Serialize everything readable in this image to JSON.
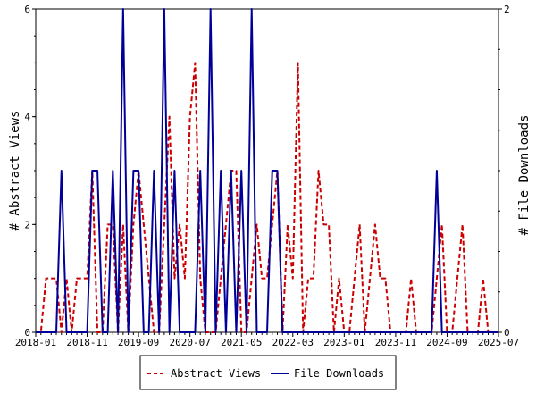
{
  "chart_data": {
    "type": "line",
    "x_dates": [
      "2018-01",
      "2018-02",
      "2018-03",
      "2018-04",
      "2018-05",
      "2018-06",
      "2018-07",
      "2018-08",
      "2018-09",
      "2018-10",
      "2018-11",
      "2018-12",
      "2019-01",
      "2019-02",
      "2019-03",
      "2019-04",
      "2019-05",
      "2019-06",
      "2019-07",
      "2019-08",
      "2019-09",
      "2019-10",
      "2019-11",
      "2019-12",
      "2020-01",
      "2020-02",
      "2020-03",
      "2020-04",
      "2020-05",
      "2020-06",
      "2020-07",
      "2020-08",
      "2020-09",
      "2020-10",
      "2020-11",
      "2020-12",
      "2021-01",
      "2021-02",
      "2021-03",
      "2021-04",
      "2021-05",
      "2021-06",
      "2021-07",
      "2021-08",
      "2021-09",
      "2021-10",
      "2021-11",
      "2021-12",
      "2022-01",
      "2022-02",
      "2022-03",
      "2022-04",
      "2022-05",
      "2022-06",
      "2022-07",
      "2022-08",
      "2022-09",
      "2022-10",
      "2022-11",
      "2022-12",
      "2023-01",
      "2023-02",
      "2023-03",
      "2023-04",
      "2023-05",
      "2023-06",
      "2023-07",
      "2023-08",
      "2023-09",
      "2023-10",
      "2023-11",
      "2023-12",
      "2024-01",
      "2024-02",
      "2024-03",
      "2024-04",
      "2024-05",
      "2024-06",
      "2024-07",
      "2024-08",
      "2024-09",
      "2024-10",
      "2024-11",
      "2024-12",
      "2025-01",
      "2025-02",
      "2025-03",
      "2025-04",
      "2025-05",
      "2025-06",
      "2025-07"
    ],
    "x_tick_labels": [
      "2018-01",
      "2018-11",
      "2019-09",
      "2020-07",
      "2021-05",
      "2022-03",
      "2023-01",
      "2023-11",
      "2024-09",
      "2025-07"
    ],
    "y_left_ticks": [
      "0",
      "2",
      "4",
      "6"
    ],
    "y_right_ticks": [
      "0",
      "2"
    ],
    "y_left_lim": [
      0,
      6
    ],
    "y_right_lim": [
      0,
      2
    ],
    "ylabel_left": "# Abstract Views",
    "ylabel_right": "# File Downloads",
    "legend_position": "bottom",
    "series": [
      {
        "name": "Abstract Views",
        "axis": "left",
        "color": "#cc0000",
        "style": "dashed",
        "values": [
          0,
          0,
          1,
          1,
          1,
          0,
          1,
          0,
          1,
          1,
          1,
          3,
          0,
          0,
          2,
          2,
          0,
          2,
          0,
          2,
          3,
          2,
          1,
          0,
          0,
          2,
          4,
          1,
          2,
          1,
          4,
          5,
          1,
          0,
          0,
          0,
          1,
          2,
          3,
          3,
          0,
          0,
          1,
          2,
          1,
          1,
          2,
          3,
          0,
          2,
          1,
          5,
          0,
          1,
          1,
          3,
          2,
          2,
          0,
          1,
          0,
          0,
          1,
          2,
          0,
          1,
          2,
          1,
          1,
          0,
          0,
          0,
          0,
          1,
          0,
          0,
          0,
          0,
          1,
          2,
          0,
          0,
          1,
          2,
          0,
          0,
          0,
          1,
          0,
          0,
          0
        ]
      },
      {
        "name": "File Downloads",
        "axis": "right",
        "color": "#000099",
        "style": "solid",
        "values": [
          0,
          0,
          0,
          0,
          0,
          1,
          0,
          0,
          0,
          0,
          0,
          1,
          1,
          0,
          0,
          1,
          0,
          2,
          0,
          1,
          1,
          0,
          0,
          1,
          0,
          2,
          0,
          1,
          0,
          0,
          0,
          0,
          1,
          0,
          2,
          0,
          1,
          0,
          1,
          0,
          1,
          0,
          2,
          0,
          0,
          0,
          1,
          1,
          0,
          0,
          0,
          0,
          0,
          0,
          0,
          0,
          0,
          0,
          0,
          0,
          0,
          0,
          0,
          0,
          0,
          0,
          0,
          0,
          0,
          0,
          0,
          0,
          0,
          0,
          0,
          0,
          0,
          0,
          1,
          0,
          0,
          0,
          0,
          0,
          0,
          0,
          0,
          0,
          0,
          0,
          0
        ]
      }
    ]
  }
}
